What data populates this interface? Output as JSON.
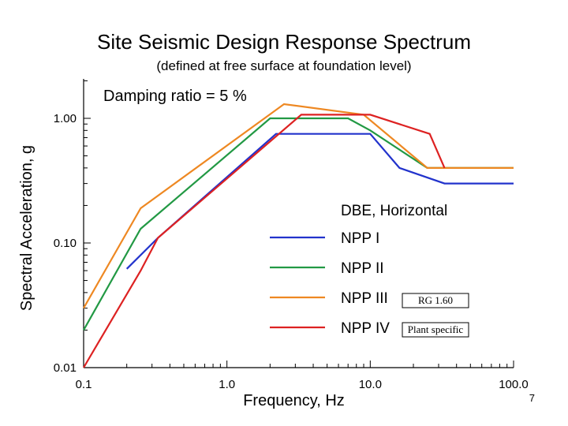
{
  "chart_data": {
    "type": "line",
    "title": "Site Seismic Design Response Spectrum",
    "subtitle": "(defined at free surface at foundation level)",
    "xlabel": "Frequency, Hz",
    "ylabel": "Spectral Acceleration, g",
    "annotation": "Damping ratio = 5 %",
    "x_scale": "log",
    "y_scale": "log",
    "xlim": [
      0.1,
      100
    ],
    "ylim": [
      0.01,
      3
    ],
    "x_ticks": [
      0.1,
      1,
      10,
      100
    ],
    "x_tick_labels": [
      "0.1",
      "1.0",
      "10.0",
      "100.0"
    ],
    "y_ticks": [
      0.01,
      0.1,
      1
    ],
    "y_tick_labels": [
      "0.01",
      "0.10",
      "1.00"
    ],
    "legend_title": "DBE, Horizontal",
    "legend_position": "lower-right",
    "series": [
      {
        "name": "NPP I",
        "color": "#2233cc",
        "x": [
          0.2,
          0.33,
          2.2,
          10,
          16,
          33,
          100
        ],
        "y": [
          0.062,
          0.11,
          0.75,
          0.75,
          0.4,
          0.3,
          0.3
        ]
      },
      {
        "name": "NPP II",
        "color": "#229944",
        "x": [
          0.1,
          0.25,
          2.0,
          7.0,
          10,
          25,
          100
        ],
        "y": [
          0.02,
          0.13,
          1.0,
          1.0,
          0.8,
          0.4,
          0.4
        ]
      },
      {
        "name": "NPP III",
        "color": "#ee8822",
        "x": [
          0.1,
          0.25,
          2.5,
          9.0,
          25,
          33,
          100
        ],
        "y": [
          0.03,
          0.19,
          1.3,
          1.07,
          0.4,
          0.4,
          0.4
        ]
      },
      {
        "name": "NPP IV",
        "color": "#dd2222",
        "x": [
          0.1,
          0.25,
          0.33,
          3.3,
          10,
          26,
          33
        ],
        "y": [
          0.01,
          0.06,
          0.11,
          1.07,
          1.07,
          0.75,
          0.4
        ]
      }
    ],
    "notes": [
      "RG 1.60",
      "Plant specific"
    ]
  },
  "page_number": "7"
}
